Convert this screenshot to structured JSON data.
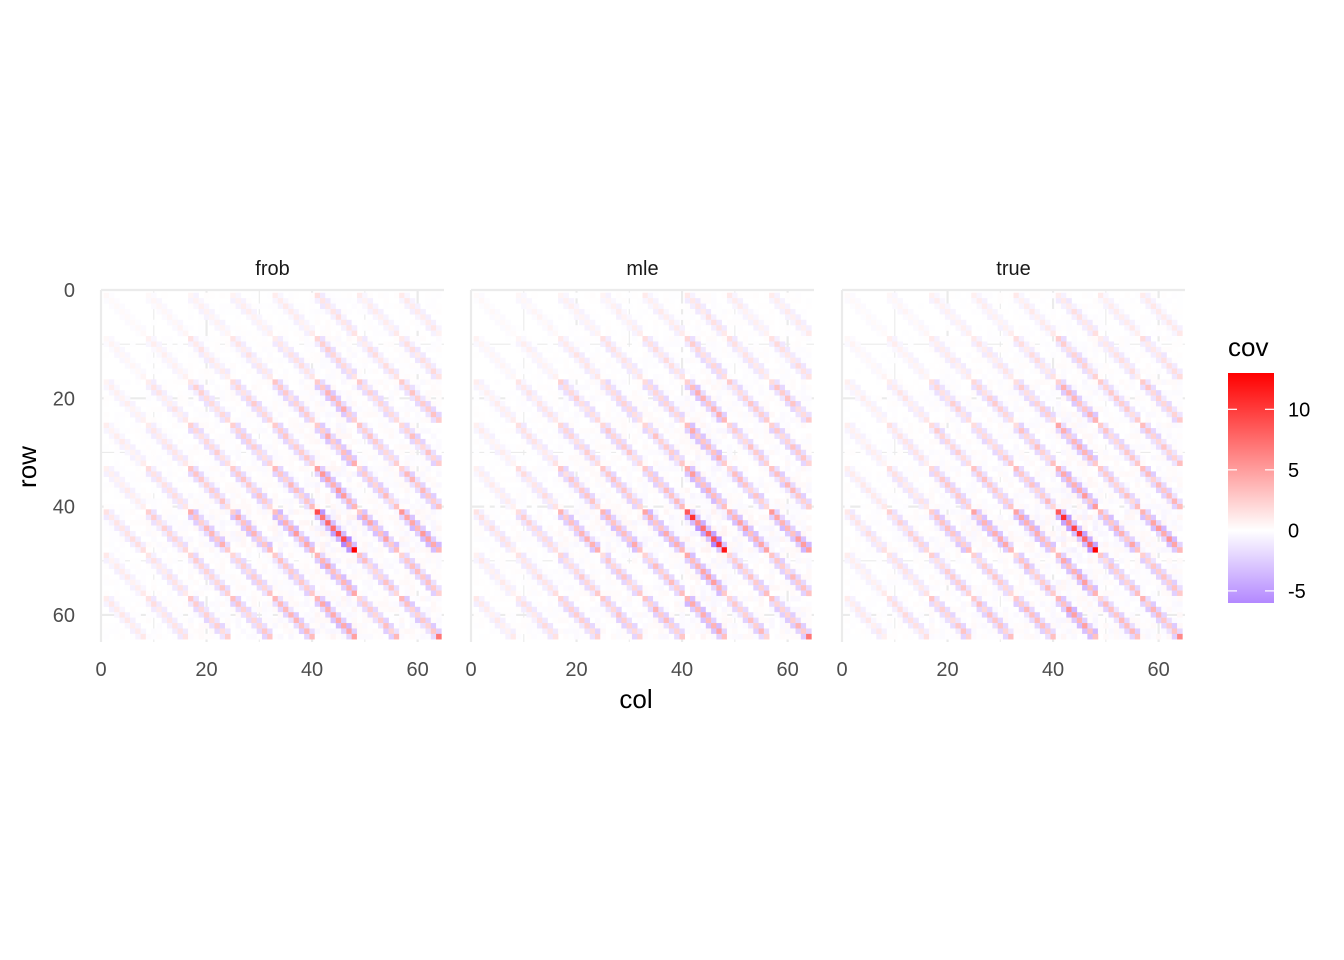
{
  "chart_data": {
    "type": "heatmap",
    "title": "",
    "xlabel": "col",
    "ylabel": "row",
    "panels": [
      "frob",
      "mle",
      "true"
    ],
    "xlim": [
      0,
      65
    ],
    "ylim": [
      0,
      65
    ],
    "y_reversed": true,
    "x_ticks": [
      0,
      20,
      40,
      60
    ],
    "y_ticks": [
      0,
      20,
      40,
      60
    ],
    "grid": true,
    "matrix_size": 64,
    "fill_name": "cov",
    "fill_range": [
      -6,
      13
    ],
    "fill_colors": {
      "low": "#b388ff",
      "mid": "#ffffff",
      "high": "#ff0000"
    },
    "legend_breaks": [
      10,
      5,
      0,
      -5
    ],
    "legend_position": "right",
    "block_size": 8,
    "notable_cells": [
      {
        "panel": "frob",
        "row": 48,
        "col": 48,
        "value": 13
      },
      {
        "panel": "mle",
        "row": 48,
        "col": 48,
        "value": 12
      },
      {
        "panel": "true",
        "row": 48,
        "col": 48,
        "value": 13
      },
      {
        "panel": "frob",
        "row": 45,
        "col": 45,
        "value": 9
      },
      {
        "panel": "frob",
        "row": 64,
        "col": 64,
        "value": 7
      },
      {
        "panel": "mle",
        "row": 64,
        "col": 64,
        "value": 7
      },
      {
        "panel": "true",
        "row": 64,
        "col": 64,
        "value": 6
      },
      {
        "panel": "frob",
        "row": 46,
        "col": 47,
        "value": -6
      },
      {
        "panel": "mle",
        "row": 46,
        "col": 47,
        "value": -6
      }
    ]
  }
}
